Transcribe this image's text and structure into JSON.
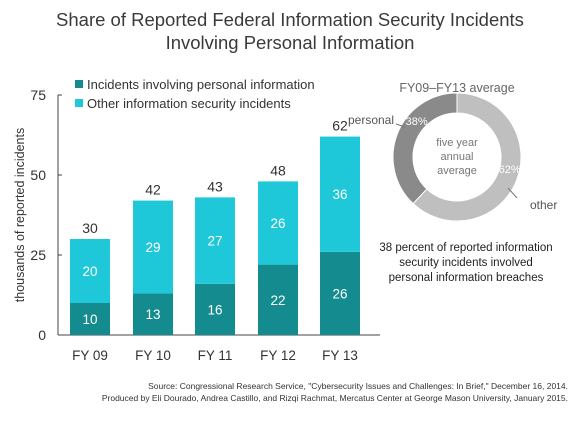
{
  "title_line1": "Share of Reported Federal Information Security Incidents",
  "title_line2": "Involving Personal Information",
  "colors": {
    "personal": "#138b8f",
    "other": "#1ec8d8",
    "donut_personal": "#8a8a8a",
    "donut_other": "#bfbfbf",
    "axis": "#444444",
    "text": "#333333"
  },
  "chart_data": [
    {
      "type": "bar",
      "stacked": true,
      "categories": [
        "FY 09",
        "FY 10",
        "FY 11",
        "FY 12",
        "FY 13"
      ],
      "series": [
        {
          "name": "Incidents involving personal information",
          "values": [
            10,
            13,
            16,
            22,
            26
          ]
        },
        {
          "name": "Other information security incidents",
          "values": [
            20,
            29,
            27,
            26,
            36
          ]
        }
      ],
      "totals": [
        30,
        42,
        43,
        48,
        62
      ],
      "ylabel": "thousands of reported incidents",
      "ylim": [
        0,
        75
      ],
      "yticks": [
        0,
        25,
        50,
        75
      ],
      "grid": false,
      "legend": "top-left"
    },
    {
      "type": "pie",
      "donut": true,
      "title": "FY09–FY13 average",
      "center_label": [
        "five year",
        "annual",
        "average"
      ],
      "slices": [
        {
          "label": "personal",
          "value": 38,
          "value_label": "38%"
        },
        {
          "label": "other",
          "value": 62,
          "value_label": "62%"
        }
      ]
    }
  ],
  "note": "38 percent of reported information security incidents involved personal information breaches",
  "source_line1": "Source: Congressional Research Service, \"Cybersecurity Issues and Challenges: In Brief,\" December 16, 2014.",
  "source_line2": "Produced by Eli Dourado, Andrea Castillo, and Rizqi Rachmat, Mercatus Center at George Mason University, January 2015."
}
